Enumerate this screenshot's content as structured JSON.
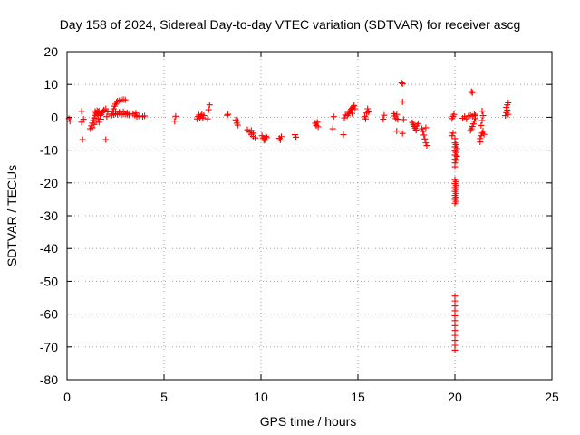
{
  "chart_data": {
    "type": "scatter",
    "title": "Day 158 of 2024, Sidereal Day-to-day VTEC variation (SDTVAR) for receiver ascg",
    "xlabel": "GPS time / hours",
    "ylabel": "SDTVAR / TECUs",
    "xlim": [
      0,
      25
    ],
    "ylim": [
      -80,
      20
    ],
    "xticks": [
      0,
      5,
      10,
      15,
      20,
      25
    ],
    "yticks": [
      20,
      10,
      0,
      -10,
      -20,
      -30,
      -40,
      -50,
      -60,
      -70,
      -80
    ],
    "grid": true,
    "marker": "plus",
    "marker_color": "#ff0000",
    "series": [
      {
        "name": "SDTVAR",
        "points": [
          [
            0.1,
            -0.4
          ],
          [
            0.15,
            -1.2
          ],
          [
            0.75,
            1.8
          ],
          [
            0.75,
            -1.5
          ],
          [
            0.8,
            -6.8
          ],
          [
            0.85,
            -0.6
          ],
          [
            1.2,
            -3.5
          ],
          [
            1.25,
            -2.6
          ],
          [
            1.3,
            -1.8
          ],
          [
            1.35,
            -1.0
          ],
          [
            1.4,
            -0.2
          ],
          [
            1.45,
            0.6
          ],
          [
            1.5,
            1.3
          ],
          [
            1.55,
            2.0
          ],
          [
            1.6,
            1.6
          ],
          [
            1.3,
            -3.2
          ],
          [
            1.4,
            -2.2
          ],
          [
            1.5,
            -1.2
          ],
          [
            1.6,
            -0.4
          ],
          [
            1.7,
            0.5
          ],
          [
            1.8,
            1.4
          ],
          [
            1.9,
            2.2
          ],
          [
            2.0,
            2.6
          ],
          [
            1.45,
            1.8
          ],
          [
            1.55,
            1.0
          ],
          [
            1.65,
            1.9
          ],
          [
            1.75,
            0.9
          ],
          [
            1.85,
            1.7
          ],
          [
            1.65,
            -1.5
          ],
          [
            1.75,
            -0.6
          ],
          [
            2.0,
            -6.8
          ],
          [
            2.05,
            0.2
          ],
          [
            2.1,
            1.6
          ],
          [
            2.3,
            1.0
          ],
          [
            2.35,
            1.8
          ],
          [
            2.4,
            2.6
          ],
          [
            2.45,
            3.4
          ],
          [
            2.5,
            4.0
          ],
          [
            2.55,
            4.6
          ],
          [
            2.6,
            4.9
          ],
          [
            2.7,
            5.1
          ],
          [
            2.8,
            5.3
          ],
          [
            2.9,
            5.4
          ],
          [
            3.0,
            5.3
          ],
          [
            2.3,
            0.6
          ],
          [
            2.4,
            0.8
          ],
          [
            2.5,
            1.1
          ],
          [
            2.6,
            0.9
          ],
          [
            2.7,
            1.2
          ],
          [
            2.8,
            0.8
          ],
          [
            2.9,
            1.0
          ],
          [
            3.0,
            1.1
          ],
          [
            3.1,
            0.9
          ],
          [
            3.2,
            0.7
          ],
          [
            2.5,
            1.8
          ],
          [
            2.7,
            1.6
          ],
          [
            2.9,
            1.7
          ],
          [
            3.1,
            1.4
          ],
          [
            3.4,
            1.1
          ],
          [
            3.5,
            0.6
          ],
          [
            3.6,
            0.2
          ],
          [
            3.7,
            0.4
          ],
          [
            3.55,
            1.3
          ],
          [
            3.9,
            0.2
          ],
          [
            4.0,
            0.4
          ],
          [
            5.55,
            -1.2
          ],
          [
            5.6,
            0.3
          ],
          [
            6.7,
            -0.5
          ],
          [
            6.75,
            0.2
          ],
          [
            6.8,
            0.7
          ],
          [
            6.85,
            -0.3
          ],
          [
            6.9,
            0.4
          ],
          [
            6.95,
            0.9
          ],
          [
            7.0,
            -0.2
          ],
          [
            7.05,
            0.5
          ],
          [
            7.25,
            -0.5
          ],
          [
            7.3,
            2.3
          ],
          [
            7.35,
            3.8
          ],
          [
            8.25,
            0.6
          ],
          [
            8.3,
            0.9
          ],
          [
            8.7,
            -0.8
          ],
          [
            8.75,
            -1.8
          ],
          [
            8.8,
            -2.4
          ],
          [
            8.8,
            -1.2
          ],
          [
            9.3,
            -3.8
          ],
          [
            9.4,
            -4.5
          ],
          [
            9.5,
            -5.2
          ],
          [
            9.6,
            -5.8
          ],
          [
            9.7,
            -6.3
          ],
          [
            9.5,
            -4.0
          ],
          [
            9.6,
            -4.8
          ],
          [
            10.05,
            -5.6
          ],
          [
            10.1,
            -6.3
          ],
          [
            10.15,
            -7.0
          ],
          [
            10.2,
            -6.8
          ],
          [
            10.25,
            -5.8
          ],
          [
            10.3,
            -6.2
          ],
          [
            10.95,
            -6.4
          ],
          [
            11.0,
            -6.9
          ],
          [
            11.05,
            -5.9
          ],
          [
            11.75,
            -5.3
          ],
          [
            11.8,
            -6.1
          ],
          [
            12.8,
            -1.8
          ],
          [
            12.85,
            -2.5
          ],
          [
            12.9,
            -1.5
          ],
          [
            12.95,
            -2.9
          ],
          [
            13.7,
            -3.5
          ],
          [
            13.75,
            0.2
          ],
          [
            14.25,
            -5.3
          ],
          [
            14.3,
            -0.2
          ],
          [
            14.35,
            0.7
          ],
          [
            14.45,
            0.5
          ],
          [
            14.5,
            1.0
          ],
          [
            14.55,
            1.5
          ],
          [
            14.6,
            2.0
          ],
          [
            14.65,
            2.4
          ],
          [
            14.7,
            2.8
          ],
          [
            14.75,
            3.2
          ],
          [
            14.8,
            3.6
          ],
          [
            14.85,
            2.6
          ],
          [
            14.7,
            1.2
          ],
          [
            15.35,
            0.2
          ],
          [
            15.4,
            -0.5
          ],
          [
            15.45,
            1.3
          ],
          [
            15.5,
            2.6
          ],
          [
            15.55,
            1.6
          ],
          [
            16.3,
            -0.6
          ],
          [
            16.35,
            0.6
          ],
          [
            16.85,
            1.1
          ],
          [
            16.9,
            0.4
          ],
          [
            16.95,
            -0.4
          ],
          [
            17.0,
            -4.2
          ],
          [
            17.05,
            -0.6
          ],
          [
            17.0,
            0.9
          ],
          [
            17.25,
            10.5
          ],
          [
            17.3,
            10.2
          ],
          [
            17.3,
            4.7
          ],
          [
            17.35,
            -0.7
          ],
          [
            17.3,
            -4.9
          ],
          [
            17.8,
            -1.6
          ],
          [
            17.85,
            -2.2
          ],
          [
            17.9,
            -2.8
          ],
          [
            17.95,
            -3.4
          ],
          [
            18.0,
            -3.9
          ],
          [
            18.05,
            -2.6
          ],
          [
            18.1,
            -1.9
          ],
          [
            18.3,
            -3.5
          ],
          [
            18.35,
            -4.3
          ],
          [
            18.4,
            -5.4
          ],
          [
            18.45,
            -6.6
          ],
          [
            18.5,
            -7.8
          ],
          [
            18.55,
            -8.6
          ],
          [
            18.5,
            -3.2
          ],
          [
            19.85,
            -0.4
          ],
          [
            19.9,
            0.3
          ],
          [
            19.95,
            0.9
          ],
          [
            19.85,
            -5.6
          ],
          [
            19.9,
            -4.8
          ],
          [
            20.0,
            -6.5
          ],
          [
            20.0,
            -7.8
          ],
          [
            20.0,
            -9.0
          ],
          [
            20.0,
            -10.3
          ],
          [
            20.0,
            -11.5
          ],
          [
            20.0,
            -12.7
          ],
          [
            20.0,
            -13.9
          ],
          [
            20.0,
            -15.1
          ],
          [
            20.05,
            -8.3
          ],
          [
            20.05,
            -10.7
          ],
          [
            20.05,
            -13.1
          ],
          [
            20.1,
            -9.5
          ],
          [
            20.1,
            -11.9
          ],
          [
            20.0,
            -19.0
          ],
          [
            20.0,
            -20.2
          ],
          [
            20.0,
            -21.4
          ],
          [
            20.0,
            -22.6
          ],
          [
            20.0,
            -23.8
          ],
          [
            20.0,
            -25.0
          ],
          [
            20.0,
            -26.2
          ],
          [
            20.05,
            -19.6
          ],
          [
            20.05,
            -20.8
          ],
          [
            20.05,
            -22.0
          ],
          [
            20.05,
            -23.2
          ],
          [
            20.05,
            -24.4
          ],
          [
            20.05,
            -25.6
          ],
          [
            20.0,
            -54.5
          ],
          [
            20.0,
            -56.0
          ],
          [
            20.0,
            -57.5
          ],
          [
            20.0,
            -59.0
          ],
          [
            20.0,
            -60.5
          ],
          [
            20.0,
            -62.0
          ],
          [
            20.0,
            -63.5
          ],
          [
            20.0,
            -65.0
          ],
          [
            20.0,
            -66.5
          ],
          [
            20.0,
            -68.0
          ],
          [
            20.0,
            -69.5
          ],
          [
            20.0,
            -71.0
          ],
          [
            20.4,
            -0.3
          ],
          [
            20.5,
            0.2
          ],
          [
            20.6,
            -0.5
          ],
          [
            20.7,
            0.4
          ],
          [
            20.8,
            0.6
          ],
          [
            20.9,
            0.3
          ],
          [
            21.0,
            0.9
          ],
          [
            21.05,
            0.5
          ],
          [
            20.8,
            -4.0
          ],
          [
            20.85,
            -3.5
          ],
          [
            20.9,
            -2.8
          ],
          [
            20.95,
            -2.0
          ],
          [
            21.0,
            -1.2
          ],
          [
            21.05,
            -0.4
          ],
          [
            20.85,
            7.8
          ],
          [
            20.9,
            7.5
          ],
          [
            21.3,
            -7.5
          ],
          [
            21.3,
            -6.5
          ],
          [
            21.35,
            -5.6
          ],
          [
            21.4,
            -4.8
          ],
          [
            21.45,
            -4.2
          ],
          [
            21.5,
            -5.2
          ],
          [
            21.35,
            -2.5
          ],
          [
            21.4,
            -1.0
          ],
          [
            21.45,
            0.5
          ],
          [
            21.4,
            1.9
          ],
          [
            22.6,
            0.5
          ],
          [
            22.65,
            1.4
          ],
          [
            22.7,
            2.2
          ],
          [
            22.65,
            3.0
          ],
          [
            22.7,
            3.8
          ],
          [
            22.75,
            4.4
          ],
          [
            22.75,
            0.9
          ]
        ]
      }
    ]
  }
}
